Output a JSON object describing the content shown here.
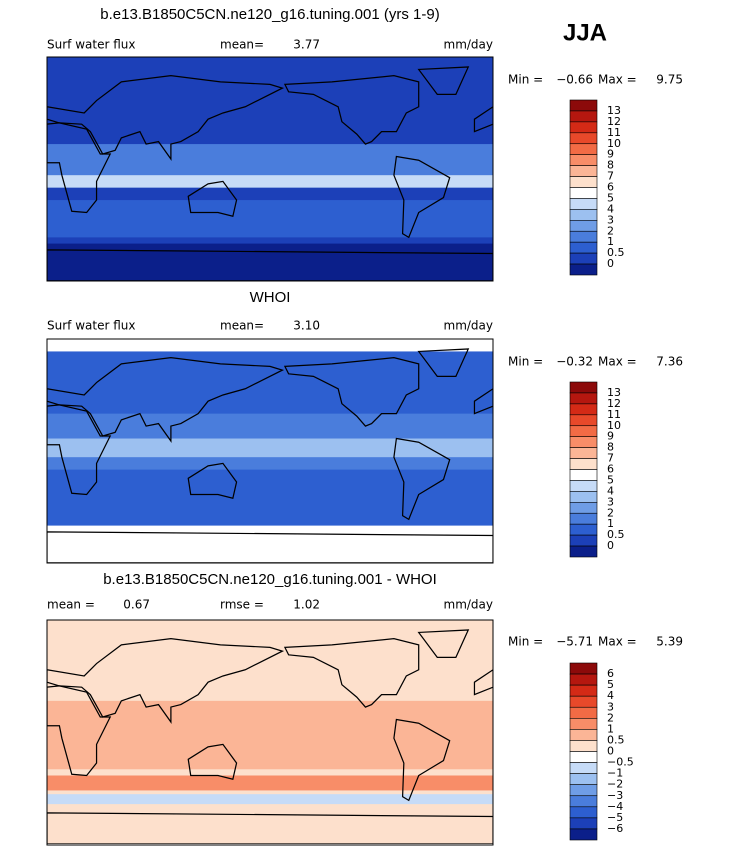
{
  "season": "JJA",
  "panels": [
    {
      "title": "b.e13.B1850C5CN.ne120_g16.tuning.001 (yrs 1-9)",
      "variable": "Surf water flux",
      "stats": [
        {
          "label": "mean=",
          "value": "3.77"
        }
      ],
      "units": "mm/day",
      "min_label": "Min =",
      "min": "−0.66",
      "max_label": "Max =",
      "max": "9.75",
      "colorbar": {
        "levels": [
          "13",
          "12",
          "11",
          "10",
          "9",
          "8",
          "7",
          "6",
          "5",
          "4",
          "3",
          "2",
          "1",
          "0.5",
          "0"
        ],
        "colors": [
          "#8c0a0a",
          "#b5170f",
          "#d42a16",
          "#e8492a",
          "#f26b45",
          "#f88d68",
          "#fbb596",
          "#fde0cc",
          "#ffffff",
          "#c6dbf7",
          "#9cc0f0",
          "#6f9de6",
          "#4a7ddc",
          "#2d5fd0",
          "#1c40b8",
          "#0b1f8a"
        ]
      }
    },
    {
      "title": "WHOI",
      "variable": "Surf water flux",
      "stats": [
        {
          "label": "mean=",
          "value": "3.10"
        }
      ],
      "units": "mm/day",
      "min_label": "Min =",
      "min": "−0.32",
      "max_label": "Max =",
      "max": "7.36",
      "colorbar": {
        "levels": [
          "13",
          "12",
          "11",
          "10",
          "9",
          "8",
          "7",
          "6",
          "5",
          "4",
          "3",
          "2",
          "1",
          "0.5",
          "0"
        ],
        "colors": [
          "#8c0a0a",
          "#b5170f",
          "#d42a16",
          "#e8492a",
          "#f26b45",
          "#f88d68",
          "#fbb596",
          "#fde0cc",
          "#ffffff",
          "#c6dbf7",
          "#9cc0f0",
          "#6f9de6",
          "#4a7ddc",
          "#2d5fd0",
          "#1c40b8",
          "#0b1f8a"
        ]
      }
    },
    {
      "title": "b.e13.B1850C5CN.ne120_g16.tuning.001 - WHOI",
      "stats": [
        {
          "label": "mean =",
          "value": "0.67"
        },
        {
          "label": "rmse =",
          "value": "1.02"
        }
      ],
      "units": "mm/day",
      "min_label": "Min =",
      "min": "−5.71",
      "max_label": "Max =",
      "max": "5.39",
      "colorbar": {
        "levels": [
          "6",
          "5",
          "4",
          "3",
          "2",
          "1",
          "0.5",
          "0",
          "−0.5",
          "−1",
          "−2",
          "−3",
          "−4",
          "−5",
          "−6"
        ],
        "colors": [
          "#8c0a0a",
          "#b5170f",
          "#d42a16",
          "#e8492a",
          "#f26b45",
          "#f88d68",
          "#fbb596",
          "#fde0cc",
          "#ffffff",
          "#c6dbf7",
          "#9cc0f0",
          "#6f9de6",
          "#4a7ddc",
          "#2d5fd0",
          "#1c40b8",
          "#0b1f8a"
        ]
      }
    }
  ]
}
